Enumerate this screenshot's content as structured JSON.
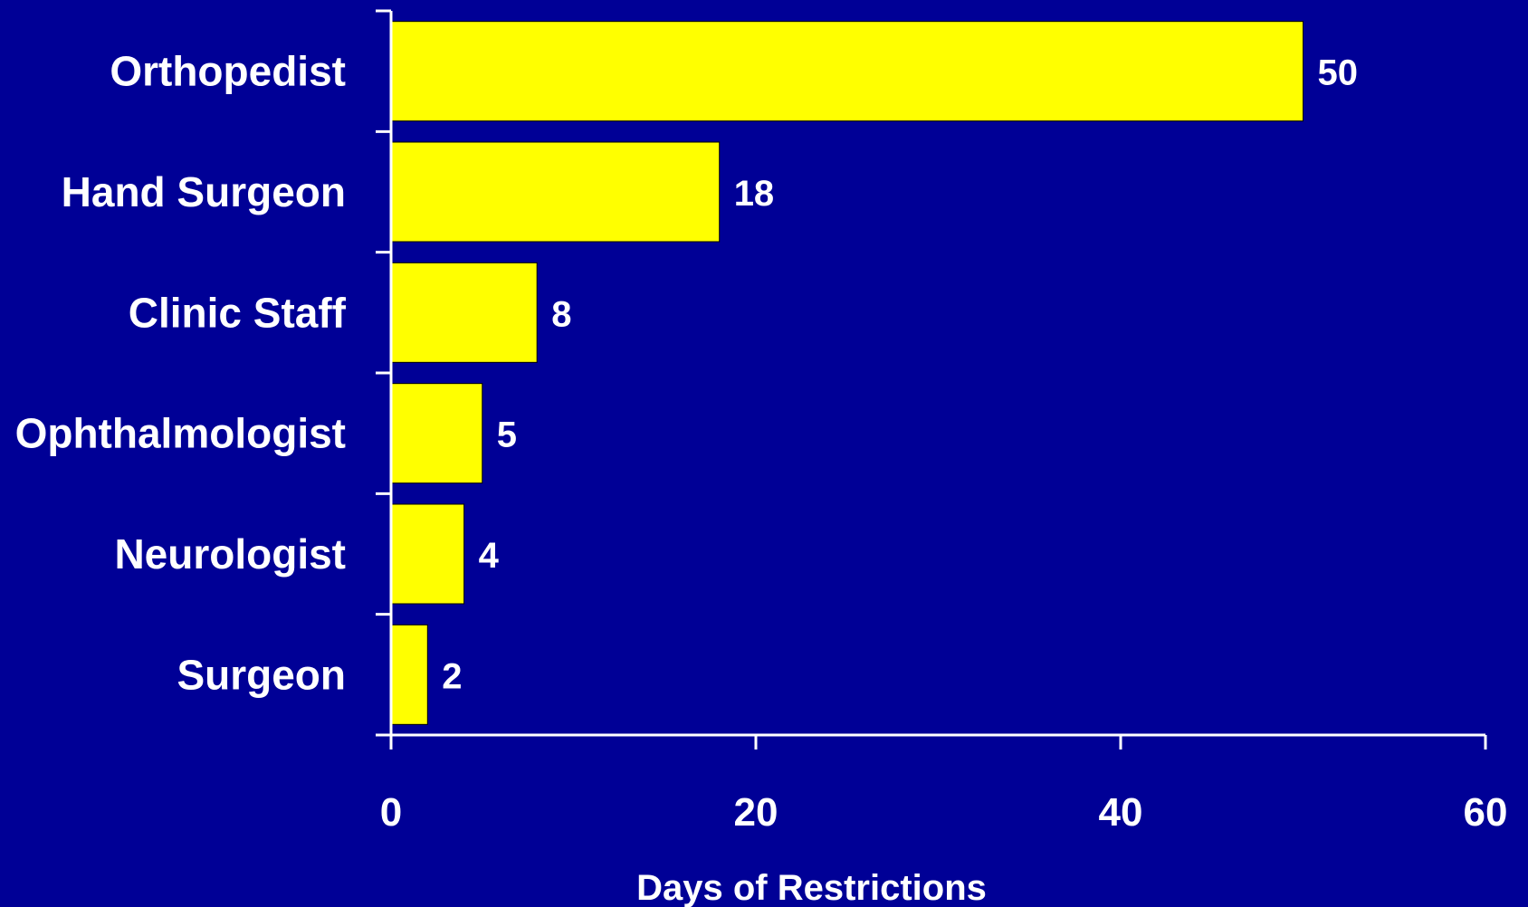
{
  "colors": {
    "background": "#000096",
    "bar": "#ffff00",
    "bar_stroke": "#000000",
    "axis": "#ffffff",
    "text": "#ffffff"
  },
  "chart_data": {
    "type": "bar",
    "orientation": "horizontal",
    "title": "",
    "xlabel": "Days of Restrictions",
    "ylabel": "",
    "categories": [
      "Orthopedist",
      "Hand Surgeon",
      "Clinic Staff",
      "Ophthalmologist",
      "Neurologist",
      "Surgeon"
    ],
    "values": [
      50,
      18,
      8,
      5,
      4,
      2
    ],
    "data_labels": [
      "50",
      "18",
      "8",
      "5",
      "4",
      "2"
    ],
    "xlim": [
      0,
      60
    ],
    "xticks": [
      0,
      20,
      40,
      60
    ],
    "xtick_labels": [
      "0",
      "20",
      "40",
      "60"
    ],
    "grid": false,
    "legend": "none"
  }
}
